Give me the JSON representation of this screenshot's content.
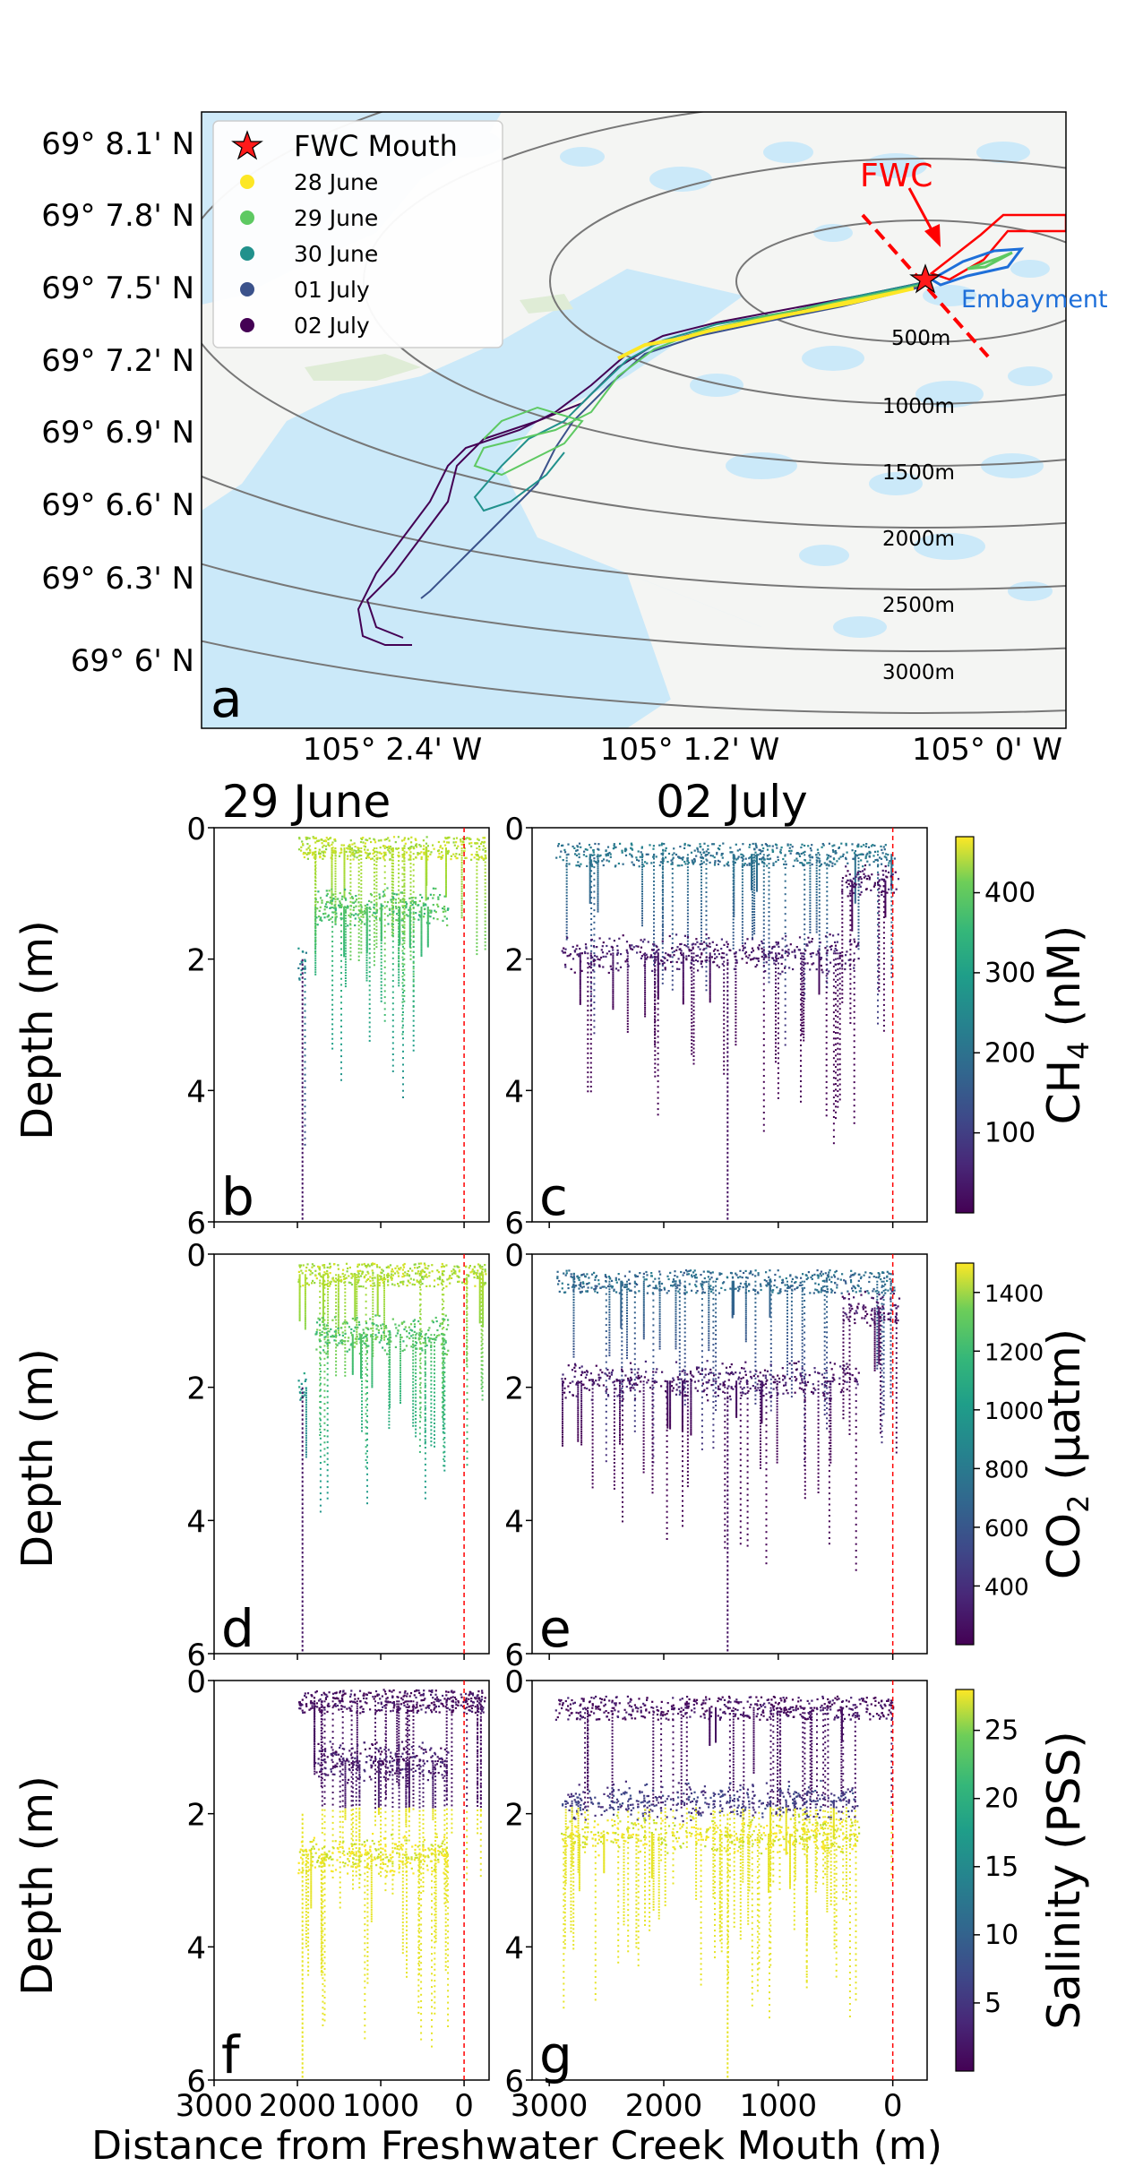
{
  "colors": {
    "water": "#cbe9f9",
    "land": "#f4f5f3",
    "fwc": "#ff0000",
    "embayment": "#1e6fd9",
    "track_28jun": "#fde725",
    "track_29jun": "#5ec962",
    "track_30jun": "#21918c",
    "track_01jul": "#3b528b",
    "track_02jul": "#440154",
    "mouth_line": "#ff0000"
  },
  "map": {
    "panel_letter": "a",
    "lat_labels": [
      "69° 8.1' N",
      "69° 7.8' N",
      "69° 7.5' N",
      "69° 7.2' N",
      "69° 6.9' N",
      "69° 6.6' N",
      "69° 6.3' N",
      "69° 6' N"
    ],
    "lon_labels": [
      "105° 2.4' W",
      "105° 1.2' W",
      "105° 0' W"
    ],
    "ring_labels": [
      "500m",
      "1000m",
      "1500m",
      "2000m",
      "2500m",
      "3000m"
    ],
    "fwc_label": "FWC",
    "embayment_label": "Embayment",
    "legend": [
      {
        "label": "FWC Mouth",
        "marker": "star-icon",
        "color": "#ff0000"
      },
      {
        "label": "28 June",
        "marker": "dot",
        "color": "#fde725"
      },
      {
        "label": "29 June",
        "marker": "dot",
        "color": "#5ec962"
      },
      {
        "label": "30 June",
        "marker": "dot",
        "color": "#21918c"
      },
      {
        "label": "01 July",
        "marker": "dot",
        "color": "#3b528b"
      },
      {
        "label": "02 July",
        "marker": "dot",
        "color": "#440154"
      }
    ]
  },
  "columns": [
    "29 June",
    "02 July"
  ],
  "ylabel": "Depth (m)",
  "xlabel": "Distance from Freshwater Creek Mouth (m)",
  "chart_data": [
    {
      "type": "scatter",
      "panel": "b",
      "date": "29 June",
      "variable": "CH4",
      "xlim": [
        3000,
        -300
      ],
      "ylim": [
        6,
        0
      ],
      "x_ticks": [
        3000,
        2000,
        1000,
        0
      ],
      "y_ticks": [
        0,
        2,
        4,
        6
      ],
      "layers": [
        {
          "x_range": [
            2000,
            -250
          ],
          "depth": 0.3,
          "value": 420
        },
        {
          "x_range": [
            1800,
            200
          ],
          "depth": 1.2,
          "value": 340
        },
        {
          "x_range": [
            2000,
            1900
          ],
          "depth": 2.0,
          "value": 220
        }
      ]
    },
    {
      "type": "scatter",
      "panel": "c",
      "date": "02 July",
      "variable": "CH4",
      "xlim": [
        3000,
        -300
      ],
      "ylim": [
        6,
        0
      ],
      "x_ticks": [
        3000,
        2000,
        1000,
        0
      ],
      "y_ticks": [
        0,
        2,
        4,
        6
      ],
      "layers": [
        {
          "x_range": [
            2950,
            -10
          ],
          "depth": 0.4,
          "value": 180
        },
        {
          "x_range": [
            2900,
            300
          ],
          "depth": 1.9,
          "value": 30
        },
        {
          "x_range": [
            450,
            -50
          ],
          "depth": 0.8,
          "value": 20
        }
      ]
    },
    {
      "type": "scatter",
      "panel": "d",
      "date": "29 June",
      "variable": "CO2",
      "xlim": [
        3000,
        -300
      ],
      "ylim": [
        6,
        0
      ],
      "x_ticks": [
        3000,
        2000,
        1000,
        0
      ],
      "y_ticks": [
        0,
        2,
        4,
        6
      ],
      "layers": [
        {
          "x_range": [
            2000,
            -250
          ],
          "depth": 0.3,
          "value": 1350
        },
        {
          "x_range": [
            1800,
            200
          ],
          "depth": 1.2,
          "value": 1150
        },
        {
          "x_range": [
            2000,
            1900
          ],
          "depth": 2.0,
          "value": 900
        }
      ]
    },
    {
      "type": "scatter",
      "panel": "e",
      "date": "02 July",
      "variable": "CO2",
      "xlim": [
        3000,
        -300
      ],
      "ylim": [
        6,
        0
      ],
      "x_ticks": [
        3000,
        2000,
        1000,
        0
      ],
      "y_ticks": [
        0,
        2,
        4,
        6
      ],
      "layers": [
        {
          "x_range": [
            2950,
            -10
          ],
          "depth": 0.4,
          "value": 650
        },
        {
          "x_range": [
            2900,
            300
          ],
          "depth": 1.9,
          "value": 280
        },
        {
          "x_range": [
            450,
            -50
          ],
          "depth": 0.8,
          "value": 250
        }
      ]
    },
    {
      "type": "scatter",
      "panel": "f",
      "date": "29 June",
      "variable": "Salinity",
      "xlim": [
        3000,
        -300
      ],
      "ylim": [
        6,
        0
      ],
      "x_ticks": [
        3000,
        2000,
        1000,
        0
      ],
      "y_ticks": [
        0,
        2,
        4,
        6
      ],
      "layers": [
        {
          "x_range": [
            2000,
            -250
          ],
          "depth": 0.3,
          "value": 1
        },
        {
          "x_range": [
            1800,
            200
          ],
          "depth": 1.2,
          "value": 2
        },
        {
          "x_range": [
            2000,
            200
          ],
          "depth": 2.6,
          "value": 27
        }
      ]
    },
    {
      "type": "scatter",
      "panel": "g",
      "date": "02 July",
      "variable": "Salinity",
      "xlim": [
        3000,
        -300
      ],
      "ylim": [
        6,
        0
      ],
      "x_ticks": [
        3000,
        2000,
        1000,
        0
      ],
      "y_ticks": [
        0,
        2,
        4,
        6
      ],
      "layers": [
        {
          "x_range": [
            2950,
            -10
          ],
          "depth": 0.4,
          "value": 1
        },
        {
          "x_range": [
            2900,
            300
          ],
          "depth": 1.8,
          "value": 5
        },
        {
          "x_range": [
            2900,
            300
          ],
          "depth": 2.3,
          "value": 27
        }
      ]
    }
  ],
  "colorbars": [
    {
      "label_main": "CH",
      "label_sub": "4",
      "label_tail": " (nM)",
      "ticks": [
        100,
        200,
        300,
        400
      ],
      "range": [
        0,
        470
      ]
    },
    {
      "label_main": "CO",
      "label_sub": "2",
      "label_tail": " (μatm)",
      "ticks": [
        400,
        600,
        800,
        1000,
        1200,
        1400
      ],
      "range": [
        200,
        1500
      ]
    },
    {
      "label_main": "Salinity (PSS)",
      "label_sub": "",
      "label_tail": "",
      "ticks": [
        5,
        10,
        15,
        20,
        25
      ],
      "range": [
        0,
        28
      ]
    }
  ]
}
